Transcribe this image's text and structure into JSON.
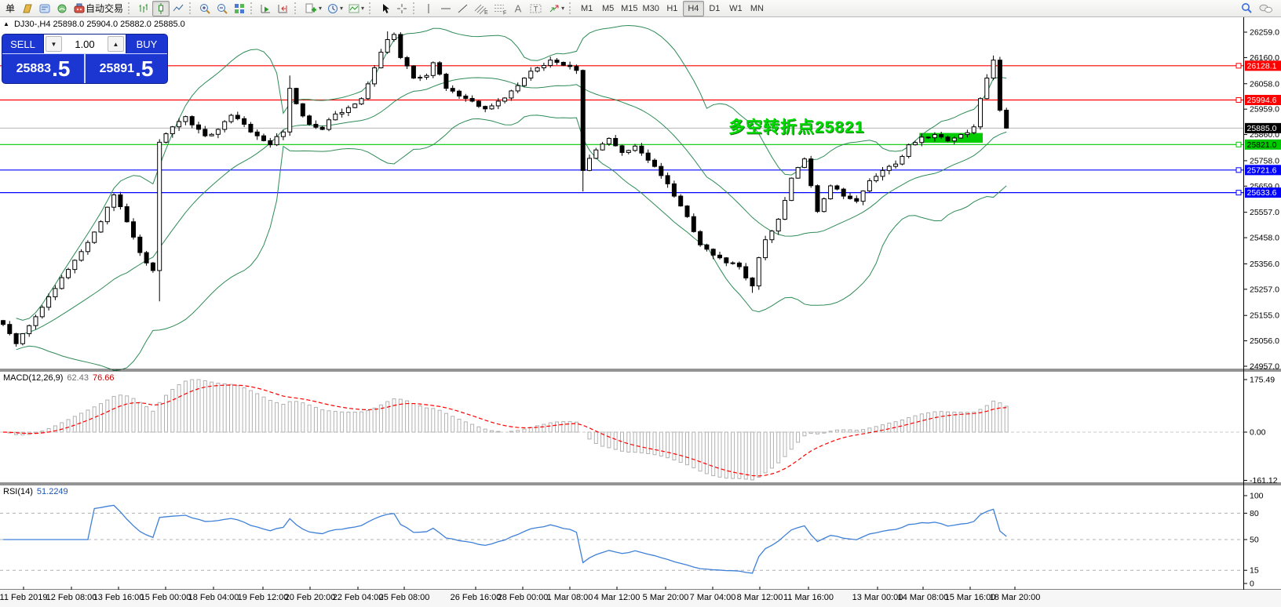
{
  "toolbar": {
    "new_order_label": "单",
    "autotrading_label": "自动交易",
    "timeframes": [
      "M1",
      "M5",
      "M15",
      "M30",
      "H1",
      "H4",
      "D1",
      "W1",
      "MN"
    ],
    "active_timeframe": "H4",
    "glyphs": {
      "channel": "E",
      "fibonacci": "F",
      "text": "A",
      "label": "T"
    },
    "icon_names": [
      "history-icon",
      "metaeditor-icon",
      "signals-icon",
      "autotrading-icon",
      "bar-chart-icon",
      "candlestick-icon",
      "line-chart-icon",
      "zoom-in-icon",
      "zoom-out-icon",
      "tile-windows-icon",
      "auto-scroll-icon",
      "chart-shift-icon",
      "templates-icon",
      "periods-icon",
      "indicators-icon",
      "cursor-icon",
      "crosshair-icon",
      "vertical-line-icon",
      "horizontal-line-icon",
      "trendline-icon",
      "equidistant-channel-icon",
      "fibonacci-icon",
      "text-icon",
      "text-label-icon",
      "arrows-icon",
      "search-icon",
      "chat-icon"
    ]
  },
  "chart": {
    "collapse_arrow": "▲",
    "symbol_period": "DJ30-,H4",
    "ohlc_text": "25898.0 25904.0 25882.0 25885.0",
    "one_click": {
      "sell_label": "SELL",
      "buy_label": "BUY",
      "volume": "1.00",
      "down_arrow": "▼",
      "up_arrow": "▲",
      "sell_price_main": "25883",
      "sell_price_frac": ".5",
      "buy_price_main": "25891",
      "buy_price_frac": ".5"
    },
    "annotation": "多空转折点25821"
  },
  "chart_data": {
    "type": "candlestick",
    "symbol": "DJ30-",
    "timeframe": "H4",
    "y_range": [
      24957.0,
      26259.0
    ],
    "y_ticks": [
      26259.0,
      26160.0,
      26058.0,
      25959.0,
      25860.0,
      25758.0,
      25659.0,
      25557.0,
      25458.0,
      25356.0,
      25257.0,
      25155.0,
      25056.0,
      24957.0
    ],
    "last_candle": {
      "open": 25898.0,
      "high": 25904.0,
      "low": 25882.0,
      "close": 25885.0
    },
    "levels": [
      {
        "price": 26128.1,
        "color": "#ff0000",
        "text": "#ffffff"
      },
      {
        "price": 25994.6,
        "color": "#ff0000",
        "text": "#ffffff"
      },
      {
        "price": 25821.0,
        "color": "#00c800",
        "text": "#000000"
      },
      {
        "price": 25721.6,
        "color": "#0000ff",
        "text": "#ffffff"
      },
      {
        "price": 25633.6,
        "color": "#0000ff",
        "text": "#ffffff"
      }
    ],
    "current_price": {
      "price": 25885.0,
      "line": "#b4b4b4",
      "tag_bg": "#000000",
      "tag_text": "#ffffff"
    },
    "highlight_rect": {
      "from_index": 141,
      "to_index": 150,
      "price_top": 25866,
      "price_bottom": 25828,
      "color": "#00cc00"
    },
    "overlays": {
      "bollinger_period": 20,
      "bollinger_dev": 2
    },
    "colors": {
      "bull": "#ffffff",
      "bear": "#000000",
      "outline": "#000000",
      "bollinger": "#2E8B57",
      "macd_hist": "#b0b0b0",
      "macd_signal": "#ff0000",
      "rsi": "#3f80d8",
      "grid_dash": "#b0b0b0"
    },
    "price_path": [
      [
        0,
        25120
      ],
      [
        2,
        25045
      ],
      [
        5,
        25150
      ],
      [
        8,
        25260
      ],
      [
        11,
        25370
      ],
      [
        14,
        25480
      ],
      [
        17,
        25625
      ],
      [
        19,
        25520
      ],
      [
        21,
        25400
      ],
      [
        23,
        25330
      ],
      [
        24,
        25830
      ],
      [
        26,
        25890
      ],
      [
        28,
        25930
      ],
      [
        31,
        25855
      ],
      [
        33,
        25880
      ],
      [
        35,
        25935
      ],
      [
        37,
        25900
      ],
      [
        39,
        25855
      ],
      [
        41,
        25820
      ],
      [
        43,
        25870
      ],
      [
        44,
        26040
      ],
      [
        45,
        25980
      ],
      [
        47,
        25900
      ],
      [
        49,
        25880
      ],
      [
        51,
        25940
      ],
      [
        53,
        25965
      ],
      [
        55,
        26000
      ],
      [
        57,
        26120
      ],
      [
        59,
        26230
      ],
      [
        60,
        26250
      ],
      [
        61,
        26160
      ],
      [
        63,
        26080
      ],
      [
        65,
        26090
      ],
      [
        66,
        26140
      ],
      [
        68,
        26040
      ],
      [
        70,
        26010
      ],
      [
        72,
        25990
      ],
      [
        74,
        25960
      ],
      [
        76,
        25990
      ],
      [
        78,
        26030
      ],
      [
        80,
        26080
      ],
      [
        82,
        26120
      ],
      [
        84,
        26150
      ],
      [
        86,
        26130
      ],
      [
        88,
        26110
      ],
      [
        89,
        25720
      ],
      [
        91,
        25800
      ],
      [
        93,
        25845
      ],
      [
        95,
        25790
      ],
      [
        97,
        25815
      ],
      [
        99,
        25760
      ],
      [
        101,
        25700
      ],
      [
        103,
        25620
      ],
      [
        105,
        25540
      ],
      [
        107,
        25430
      ],
      [
        109,
        25390
      ],
      [
        111,
        25360
      ],
      [
        113,
        25345
      ],
      [
        115,
        25270
      ],
      [
        116,
        25380
      ],
      [
        117,
        25450
      ],
      [
        119,
        25530
      ],
      [
        121,
        25690
      ],
      [
        123,
        25765
      ],
      [
        125,
        25560
      ],
      [
        127,
        25660
      ],
      [
        129,
        25620
      ],
      [
        131,
        25600
      ],
      [
        133,
        25680
      ],
      [
        135,
        25720
      ],
      [
        137,
        25745
      ],
      [
        139,
        25820
      ],
      [
        141,
        25850
      ],
      [
        143,
        25860
      ],
      [
        145,
        25835
      ],
      [
        147,
        25860
      ],
      [
        149,
        25890
      ],
      [
        150,
        26000
      ],
      [
        151,
        26080
      ],
      [
        152,
        26150
      ],
      [
        153,
        25955
      ],
      [
        154,
        25885
      ]
    ],
    "wick_overrides": {
      "24": {
        "low": 25210
      },
      "44": {
        "high": 26090
      },
      "59": {
        "high": 26262
      },
      "60": {
        "high": 26258
      },
      "89": {
        "low": 25638
      },
      "115": {
        "low": 25243
      },
      "152": {
        "high": 26168
      }
    },
    "indicators": [
      {
        "name": "MACD",
        "params": "12,26,9",
        "label": "MACD(12,26,9)",
        "main_text": "62.43",
        "signal_text": "76.66",
        "range": [
          -161.12,
          175.49
        ],
        "ticks": [
          175.49,
          0,
          -161.12
        ]
      },
      {
        "name": "RSI",
        "params": "14",
        "label": "RSI(14)",
        "value_text": "51.2249",
        "range": [
          0,
          100
        ],
        "ticks": [
          100,
          80,
          50,
          15,
          0
        ],
        "levels": [
          80,
          50,
          15
        ]
      }
    ],
    "time_labels": [
      [
        30,
        "11 Feb 2019"
      ],
      [
        91,
        "12 Feb 08:00"
      ],
      [
        151,
        "13 Feb 16:00"
      ],
      [
        211,
        "15 Feb 00:00"
      ],
      [
        272,
        "18 Feb 04:00"
      ],
      [
        335,
        "19 Feb 12:00"
      ],
      [
        395,
        "20 Feb 20:00"
      ],
      [
        456,
        "22 Feb 04:00"
      ],
      [
        515,
        "25 Feb 08:00"
      ],
      [
        606,
        "26 Feb 16:00"
      ],
      [
        666,
        "28 Feb 00:00"
      ],
      [
        726,
        "1 Mar 08:00"
      ],
      [
        786,
        "4 Mar 12:00"
      ],
      [
        848,
        "5 Mar 20:00"
      ],
      [
        908,
        "7 Mar 04:00"
      ],
      [
        968,
        "8 Mar 12:00"
      ],
      [
        1030,
        "11 Mar 16:00"
      ],
      [
        1118,
        "13 Mar 00:00"
      ],
      [
        1176,
        "14 Mar 08:00"
      ],
      [
        1236,
        "15 Mar 16:00"
      ],
      [
        1293,
        "18 Mar 20:00"
      ]
    ]
  }
}
